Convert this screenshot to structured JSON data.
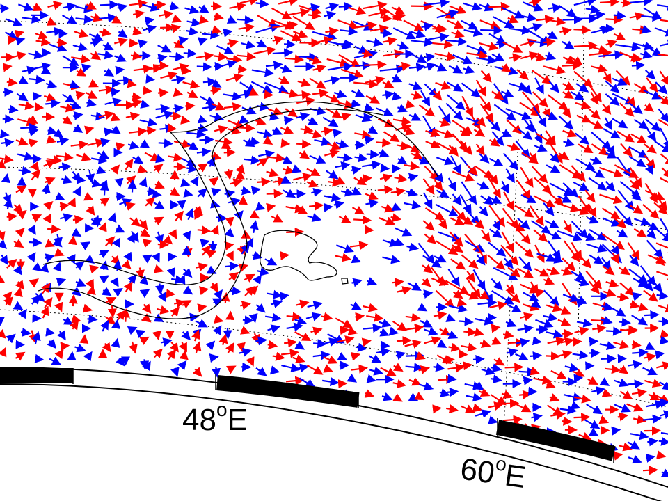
{
  "map": {
    "projection": "polar-stereographic",
    "longitude_labels": [
      {
        "lon_label": "48",
        "degree_mark": "o",
        "hemisphere": "E"
      },
      {
        "lon_label": "60",
        "degree_mark": "o",
        "hemisphere": "E"
      }
    ],
    "vector_colors": [
      "#ff0000",
      "#0000ff"
    ],
    "contour_color": "#000000",
    "graticule_style": "dotted",
    "frame_style": "alternating black-white border"
  }
}
